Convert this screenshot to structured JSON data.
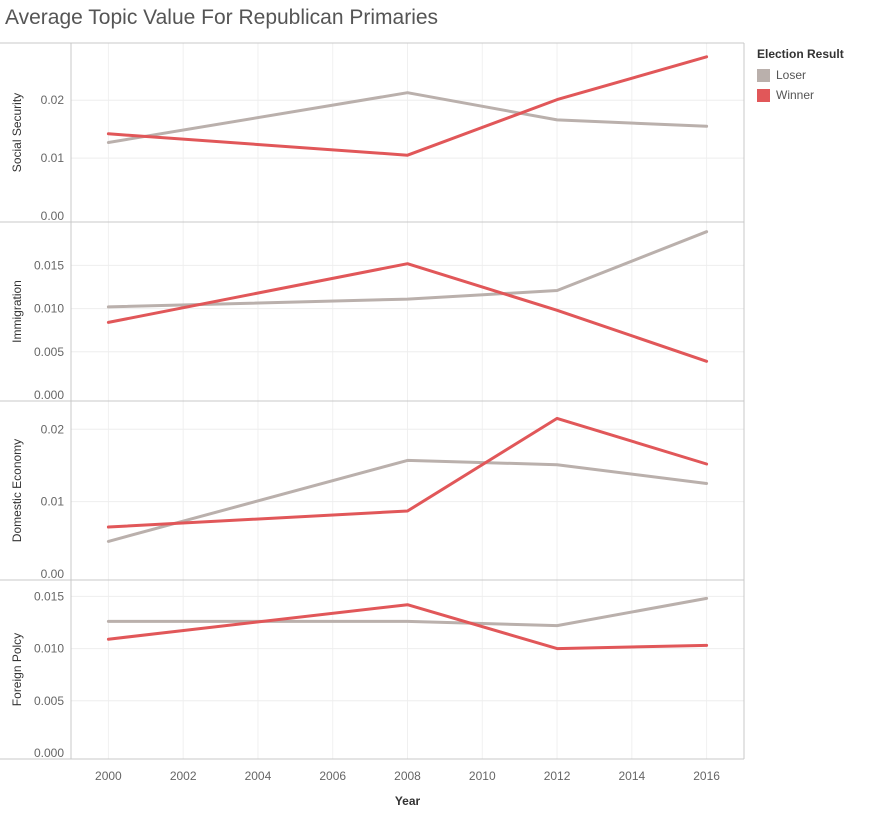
{
  "chart_data": {
    "type": "line",
    "title": "Average Topic Value For Republican Primaries",
    "xlabel": "Year",
    "x_ticks": [
      "2000",
      "2002",
      "2004",
      "2006",
      "2008",
      "2010",
      "2012",
      "2014",
      "2016"
    ],
    "xlim": [
      1999,
      2017
    ],
    "legend_title": "Election Result",
    "legend_placement": "right",
    "grid": true,
    "colors": {
      "Loser": "#bab0ac",
      "Winner": "#e15759"
    },
    "panels": [
      {
        "ylabel": "Social Security",
        "ylim": [
          0,
          0.0285
        ],
        "y_ticks": [
          "0.00",
          "0.01",
          "0.02"
        ],
        "y_tick_values": [
          0,
          0.01,
          0.02
        ],
        "series": [
          {
            "name": "Loser",
            "x": [
              2000,
              2008,
              2012,
              2016
            ],
            "values": [
              0.0127,
              0.0213,
              0.0166,
              0.0155
            ]
          },
          {
            "name": "Winner",
            "x": [
              2000,
              2008,
              2012,
              2016
            ],
            "values": [
              0.0142,
              0.0105,
              0.0201,
              0.0275
            ]
          }
        ]
      },
      {
        "ylabel": "Immigration",
        "ylim": [
          0,
          0.0191
        ],
        "y_ticks": [
          "0.000",
          "0.005",
          "0.010",
          "0.015"
        ],
        "y_tick_values": [
          0,
          0.005,
          0.01,
          0.015
        ],
        "series": [
          {
            "name": "Loser",
            "x": [
              2000,
              2008,
              2012,
              2016
            ],
            "values": [
              0.0102,
              0.0111,
              0.0121,
              0.0189
            ]
          },
          {
            "name": "Winner",
            "x": [
              2000,
              2008,
              2012,
              2016
            ],
            "values": [
              0.0084,
              0.0152,
              0.0098,
              0.0039
            ]
          }
        ]
      },
      {
        "ylabel": "Domestic Economy",
        "ylim": [
          0,
          0.0228
        ],
        "y_ticks": [
          "0.00",
          "0.01",
          "0.02"
        ],
        "y_tick_values": [
          0,
          0.01,
          0.02
        ],
        "series": [
          {
            "name": "Loser",
            "x": [
              2000,
              2008,
              2012,
              2016
            ],
            "values": [
              0.0045,
              0.0157,
              0.0151,
              0.0125
            ]
          },
          {
            "name": "Winner",
            "x": [
              2000,
              2008,
              2012,
              2016
            ],
            "values": [
              0.0065,
              0.0087,
              0.0215,
              0.0152
            ]
          }
        ]
      },
      {
        "ylabel": "Foreign Polcy",
        "ylim": [
          0,
          0.0158
        ],
        "y_ticks": [
          "0.000",
          "0.005",
          "0.010",
          "0.015"
        ],
        "y_tick_values": [
          0,
          0.005,
          0.01,
          0.015
        ],
        "series": [
          {
            "name": "Loser",
            "x": [
              2000,
              2008,
              2012,
              2016
            ],
            "values": [
              0.0126,
              0.0126,
              0.0122,
              0.0148
            ]
          },
          {
            "name": "Winner",
            "x": [
              2000,
              2008,
              2012,
              2016
            ],
            "values": [
              0.0109,
              0.0142,
              0.01,
              0.0103
            ]
          }
        ]
      }
    ]
  },
  "legend": {
    "title": "Election Result",
    "items": [
      {
        "label": "Loser",
        "color": "#bab0ac"
      },
      {
        "label": "Winner",
        "color": "#e15759"
      }
    ]
  }
}
